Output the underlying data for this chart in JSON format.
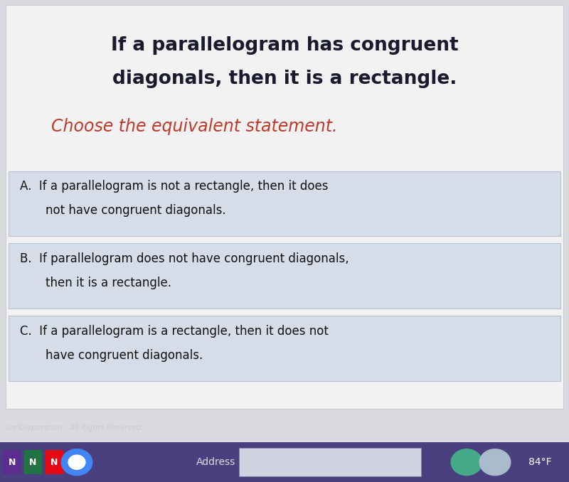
{
  "bg_color": "#d8dae0",
  "content_bg": "#f2f2f2",
  "title_line1": "If a parallelogram has congruent",
  "title_line2": "diagonals, then it is a rectangle.",
  "title_color": "#1a1a2e",
  "subtitle_text": "Choose the equivalent statement.",
  "subtitle_color": "#c0392b",
  "options": [
    {
      "label": "A.",
      "line1": "If a parallelogram is not a rectangle, then it does",
      "line2": "not have congruent diagonals."
    },
    {
      "label": "B.",
      "line1": "If parallelogram does not have congruent diagonals,",
      "line2": "then it is a rectangle."
    },
    {
      "label": "C.",
      "line1": "If a parallelogram is a rectangle, then it does not",
      "line2": "have congruent diagonals."
    }
  ],
  "option_bg": "#d6dce8",
  "option_border": "#b8c0d0",
  "option_text_color": "#111111",
  "footer_text": "lus Corporation.  All Rights Reserved.",
  "footer_color": "#cccccc",
  "taskbar_bg": "#4a4080",
  "taskbar_text": "Address",
  "taskbar_right": "84°F",
  "figwidth": 8.0,
  "figheight": 6.78
}
